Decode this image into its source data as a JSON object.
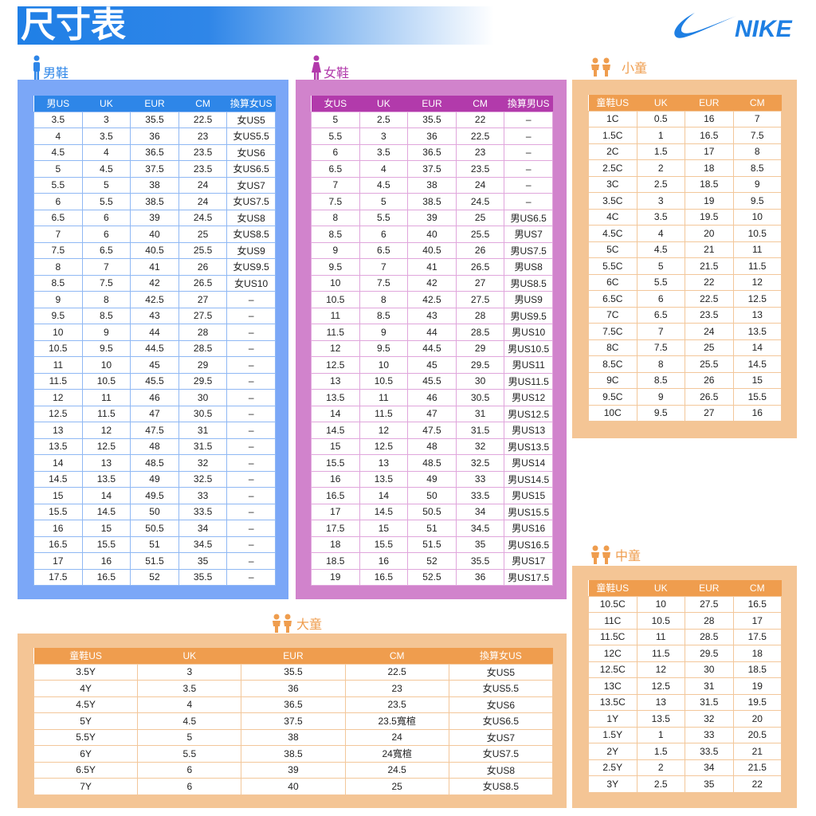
{
  "title": "尺寸表",
  "brand": "NIKE",
  "colors": {
    "men_panel": "#7ba7f7",
    "men_header": "#2e86e8",
    "women_panel": "#d183cc",
    "women_header": "#b23aab",
    "kids_panel": "#f4c595",
    "kids_header": "#ef9d4e"
  },
  "men": {
    "label": "男鞋",
    "icon": "man-icon",
    "headers": [
      "男US",
      "UK",
      "EUR",
      "CM",
      "換算女US"
    ],
    "rows": [
      [
        "3.5",
        "3",
        "35.5",
        "22.5",
        "女US5"
      ],
      [
        "4",
        "3.5",
        "36",
        "23",
        "女US5.5"
      ],
      [
        "4.5",
        "4",
        "36.5",
        "23.5",
        "女US6"
      ],
      [
        "5",
        "4.5",
        "37.5",
        "23.5",
        "女US6.5"
      ],
      [
        "5.5",
        "5",
        "38",
        "24",
        "女US7"
      ],
      [
        "6",
        "5.5",
        "38.5",
        "24",
        "女US7.5"
      ],
      [
        "6.5",
        "6",
        "39",
        "24.5",
        "女US8"
      ],
      [
        "7",
        "6",
        "40",
        "25",
        "女US8.5"
      ],
      [
        "7.5",
        "6.5",
        "40.5",
        "25.5",
        "女US9"
      ],
      [
        "8",
        "7",
        "41",
        "26",
        "女US9.5"
      ],
      [
        "8.5",
        "7.5",
        "42",
        "26.5",
        "女US10"
      ],
      [
        "9",
        "8",
        "42.5",
        "27",
        "–"
      ],
      [
        "9.5",
        "8.5",
        "43",
        "27.5",
        "–"
      ],
      [
        "10",
        "9",
        "44",
        "28",
        "–"
      ],
      [
        "10.5",
        "9.5",
        "44.5",
        "28.5",
        "–"
      ],
      [
        "11",
        "10",
        "45",
        "29",
        "–"
      ],
      [
        "11.5",
        "10.5",
        "45.5",
        "29.5",
        "–"
      ],
      [
        "12",
        "11",
        "46",
        "30",
        "–"
      ],
      [
        "12.5",
        "11.5",
        "47",
        "30.5",
        "–"
      ],
      [
        "13",
        "12",
        "47.5",
        "31",
        "–"
      ],
      [
        "13.5",
        "12.5",
        "48",
        "31.5",
        "–"
      ],
      [
        "14",
        "13",
        "48.5",
        "32",
        "–"
      ],
      [
        "14.5",
        "13.5",
        "49",
        "32.5",
        "–"
      ],
      [
        "15",
        "14",
        "49.5",
        "33",
        "–"
      ],
      [
        "15.5",
        "14.5",
        "50",
        "33.5",
        "–"
      ],
      [
        "16",
        "15",
        "50.5",
        "34",
        "–"
      ],
      [
        "16.5",
        "15.5",
        "51",
        "34.5",
        "–"
      ],
      [
        "17",
        "16",
        "51.5",
        "35",
        "–"
      ],
      [
        "17.5",
        "16.5",
        "52",
        "35.5",
        "–"
      ]
    ]
  },
  "women": {
    "label": "女鞋",
    "icon": "woman-icon",
    "headers": [
      "女US",
      "UK",
      "EUR",
      "CM",
      "換算男US"
    ],
    "rows": [
      [
        "5",
        "2.5",
        "35.5",
        "22",
        "–"
      ],
      [
        "5.5",
        "3",
        "36",
        "22.5",
        "–"
      ],
      [
        "6",
        "3.5",
        "36.5",
        "23",
        "–"
      ],
      [
        "6.5",
        "4",
        "37.5",
        "23.5",
        "–"
      ],
      [
        "7",
        "4.5",
        "38",
        "24",
        "–"
      ],
      [
        "7.5",
        "5",
        "38.5",
        "24.5",
        "–"
      ],
      [
        "8",
        "5.5",
        "39",
        "25",
        "男US6.5"
      ],
      [
        "8.5",
        "6",
        "40",
        "25.5",
        "男US7"
      ],
      [
        "9",
        "6.5",
        "40.5",
        "26",
        "男US7.5"
      ],
      [
        "9.5",
        "7",
        "41",
        "26.5",
        "男US8"
      ],
      [
        "10",
        "7.5",
        "42",
        "27",
        "男US8.5"
      ],
      [
        "10.5",
        "8",
        "42.5",
        "27.5",
        "男US9"
      ],
      [
        "11",
        "8.5",
        "43",
        "28",
        "男US9.5"
      ],
      [
        "11.5",
        "9",
        "44",
        "28.5",
        "男US10"
      ],
      [
        "12",
        "9.5",
        "44.5",
        "29",
        "男US10.5"
      ],
      [
        "12.5",
        "10",
        "45",
        "29.5",
        "男US11"
      ],
      [
        "13",
        "10.5",
        "45.5",
        "30",
        "男US11.5"
      ],
      [
        "13.5",
        "11",
        "46",
        "30.5",
        "男US12"
      ],
      [
        "14",
        "11.5",
        "47",
        "31",
        "男US12.5"
      ],
      [
        "14.5",
        "12",
        "47.5",
        "31.5",
        "男US13"
      ],
      [
        "15",
        "12.5",
        "48",
        "32",
        "男US13.5"
      ],
      [
        "15.5",
        "13",
        "48.5",
        "32.5",
        "男US14"
      ],
      [
        "16",
        "13.5",
        "49",
        "33",
        "男US14.5"
      ],
      [
        "16.5",
        "14",
        "50",
        "33.5",
        "男US15"
      ],
      [
        "17",
        "14.5",
        "50.5",
        "34",
        "男US15.5"
      ],
      [
        "17.5",
        "15",
        "51",
        "34.5",
        "男US16"
      ],
      [
        "18",
        "15.5",
        "51.5",
        "35",
        "男US16.5"
      ],
      [
        "18.5",
        "16",
        "52",
        "35.5",
        "男US17"
      ],
      [
        "19",
        "16.5",
        "52.5",
        "36",
        "男US17.5"
      ]
    ]
  },
  "small_kids": {
    "label": "小童",
    "icon": "children-icon",
    "headers": [
      "童鞋US",
      "UK",
      "EUR",
      "CM"
    ],
    "rows": [
      [
        "1C",
        "0.5",
        "16",
        "7"
      ],
      [
        "1.5C",
        "1",
        "16.5",
        "7.5"
      ],
      [
        "2C",
        "1.5",
        "17",
        "8"
      ],
      [
        "2.5C",
        "2",
        "18",
        "8.5"
      ],
      [
        "3C",
        "2.5",
        "18.5",
        "9"
      ],
      [
        "3.5C",
        "3",
        "19",
        "9.5"
      ],
      [
        "4C",
        "3.5",
        "19.5",
        "10"
      ],
      [
        "4.5C",
        "4",
        "20",
        "10.5"
      ],
      [
        "5C",
        "4.5",
        "21",
        "11"
      ],
      [
        "5.5C",
        "5",
        "21.5",
        "11.5"
      ],
      [
        "6C",
        "5.5",
        "22",
        "12"
      ],
      [
        "6.5C",
        "6",
        "22.5",
        "12.5"
      ],
      [
        "7C",
        "6.5",
        "23.5",
        "13"
      ],
      [
        "7.5C",
        "7",
        "24",
        "13.5"
      ],
      [
        "8C",
        "7.5",
        "25",
        "14"
      ],
      [
        "8.5C",
        "8",
        "25.5",
        "14.5"
      ],
      [
        "9C",
        "8.5",
        "26",
        "15"
      ],
      [
        "9.5C",
        "9",
        "26.5",
        "15.5"
      ],
      [
        "10C",
        "9.5",
        "27",
        "16"
      ]
    ]
  },
  "mid_kids": {
    "label": "中童",
    "icon": "children-icon",
    "headers": [
      "童鞋US",
      "UK",
      "EUR",
      "CM"
    ],
    "rows": [
      [
        "10.5C",
        "10",
        "27.5",
        "16.5"
      ],
      [
        "11C",
        "10.5",
        "28",
        "17"
      ],
      [
        "11.5C",
        "11",
        "28.5",
        "17.5"
      ],
      [
        "12C",
        "11.5",
        "29.5",
        "18"
      ],
      [
        "12.5C",
        "12",
        "30",
        "18.5"
      ],
      [
        "13C",
        "12.5",
        "31",
        "19"
      ],
      [
        "13.5C",
        "13",
        "31.5",
        "19.5"
      ],
      [
        "1Y",
        "13.5",
        "32",
        "20"
      ],
      [
        "1.5Y",
        "1",
        "33",
        "20.5"
      ],
      [
        "2Y",
        "1.5",
        "33.5",
        "21"
      ],
      [
        "2.5Y",
        "2",
        "34",
        "21.5"
      ],
      [
        "3Y",
        "2.5",
        "35",
        "22"
      ]
    ]
  },
  "big_kids": {
    "label": "大童",
    "icon": "children-icon",
    "headers": [
      "童鞋US",
      "UK",
      "EUR",
      "CM",
      "換算女US"
    ],
    "rows": [
      [
        "3.5Y",
        "3",
        "35.5",
        "22.5",
        "女US5"
      ],
      [
        "4Y",
        "3.5",
        "36",
        "23",
        "女US5.5"
      ],
      [
        "4.5Y",
        "4",
        "36.5",
        "23.5",
        "女US6"
      ],
      [
        "5Y",
        "4.5",
        "37.5",
        "23.5寬楦",
        "女US6.5"
      ],
      [
        "5.5Y",
        "5",
        "38",
        "24",
        "女US7"
      ],
      [
        "6Y",
        "5.5",
        "38.5",
        "24寬楦",
        "女US7.5"
      ],
      [
        "6.5Y",
        "6",
        "39",
        "24.5",
        "女US8"
      ],
      [
        "7Y",
        "6",
        "40",
        "25",
        "女US8.5"
      ]
    ]
  }
}
